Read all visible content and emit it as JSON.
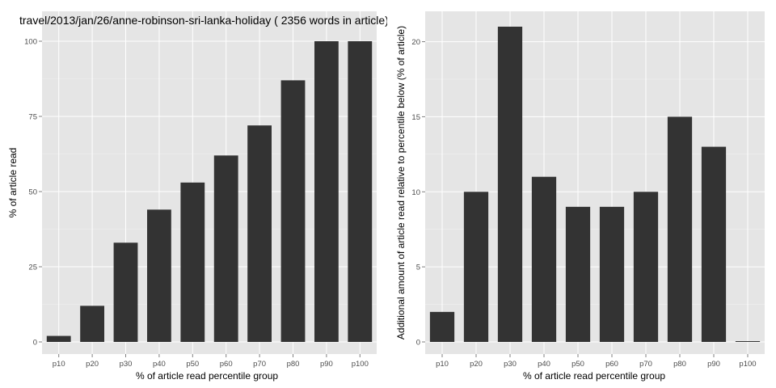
{
  "chart_data": [
    {
      "type": "bar",
      "title": "travel/2013/jan/26/anne-robinson-sri-lanka-holiday ( 2356 words in article)",
      "xlabel": "% of article read percentile group",
      "ylabel": "% of article read",
      "categories": [
        "p10",
        "p20",
        "p30",
        "p40",
        "p50",
        "p60",
        "p70",
        "p80",
        "p90",
        "p100"
      ],
      "values": [
        2,
        12,
        33,
        44,
        53,
        62,
        72,
        87,
        100,
        100
      ],
      "ylim": [
        0,
        100
      ],
      "yticks": [
        0,
        25,
        50,
        75,
        100
      ],
      "grid": true,
      "bar_color": "#333333",
      "panel_color": "#e5e5e5"
    },
    {
      "type": "bar",
      "title": "",
      "xlabel": "% of article read percentile group",
      "ylabel": "Additional amount of article read relative to percentile below (% of article)",
      "categories": [
        "p10",
        "p20",
        "p30",
        "p40",
        "p50",
        "p60",
        "p70",
        "p80",
        "p90",
        "p100"
      ],
      "values": [
        2,
        10,
        21,
        11,
        9,
        9,
        10,
        15,
        13,
        0
      ],
      "ylim": [
        0,
        21
      ],
      "yticks": [
        0,
        5,
        10,
        15,
        20
      ],
      "grid": true,
      "bar_color": "#333333",
      "panel_color": "#e5e5e5"
    }
  ]
}
